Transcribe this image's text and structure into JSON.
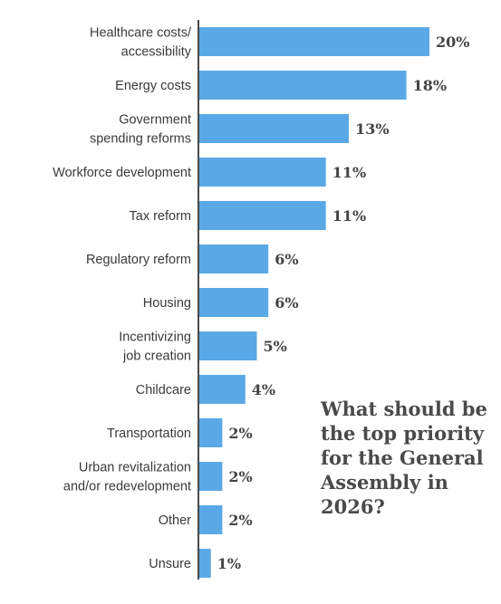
{
  "question": "What should be the top priority for the General Assembly in 2026?",
  "colors": {
    "bar": "#5aa9e6",
    "axis": "#4a4a4a",
    "text": "#3a3a3a",
    "value_text": "#444444"
  },
  "chart_data": {
    "type": "bar",
    "orientation": "horizontal",
    "title": "What should be the top priority for the General Assembly in 2026?",
    "categories": [
      [
        "Healthcare costs/",
        "accessibility"
      ],
      [
        "Energy costs"
      ],
      [
        "Government",
        "spending reforms"
      ],
      [
        "Workforce development"
      ],
      [
        "Tax reform"
      ],
      [
        "Regulatory reform"
      ],
      [
        "Housing"
      ],
      [
        "Incentivizing",
        "job creation"
      ],
      [
        "Childcare"
      ],
      [
        "Transportation"
      ],
      [
        "Urban revitalization",
        "and/or redevelopment"
      ],
      [
        "Other"
      ],
      [
        "Unsure"
      ]
    ],
    "values": [
      20,
      18,
      13,
      11,
      11,
      6,
      6,
      5,
      4,
      2,
      2,
      2,
      1
    ],
    "value_labels": [
      "20%",
      "18%",
      "13%",
      "11%",
      "11%",
      "6%",
      "6%",
      "5%",
      "4%",
      "2%",
      "2%",
      "2%",
      "1%"
    ],
    "unit": "%",
    "xlim": [
      0,
      20
    ],
    "grid": false,
    "legend": "none"
  }
}
